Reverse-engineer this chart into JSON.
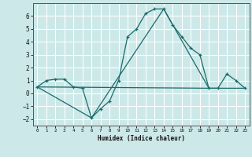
{
  "xlabel": "Humidex (Indice chaleur)",
  "bg_color": "#cce8e8",
  "line_color": "#1a6b6b",
  "grid_color": "#ffffff",
  "xlim": [
    -0.5,
    23.5
  ],
  "ylim": [
    -2.5,
    7.0
  ],
  "yticks": [
    -2,
    -1,
    0,
    1,
    2,
    3,
    4,
    5,
    6
  ],
  "xticks": [
    0,
    1,
    2,
    3,
    4,
    5,
    6,
    7,
    8,
    9,
    10,
    11,
    12,
    13,
    14,
    15,
    16,
    17,
    18,
    19,
    20,
    21,
    22,
    23
  ],
  "line1_x": [
    0,
    1,
    2,
    3,
    4,
    5,
    6,
    7,
    8,
    9,
    10,
    11,
    12,
    13,
    14,
    15,
    16,
    17,
    18,
    19,
    20,
    21,
    22,
    23
  ],
  "line1_y": [
    0.5,
    1.0,
    1.1,
    1.1,
    0.5,
    0.4,
    -1.9,
    -1.2,
    -0.6,
    1.0,
    4.4,
    5.0,
    6.2,
    6.55,
    6.55,
    5.3,
    4.4,
    3.5,
    3.0,
    0.4,
    0.4,
    1.5,
    1.0,
    0.4
  ],
  "line2_x": [
    0,
    6,
    14,
    19,
    23
  ],
  "line2_y": [
    0.5,
    -1.9,
    6.55,
    0.4,
    0.4
  ],
  "line3_x": [
    0,
    19
  ],
  "line3_y": [
    0.5,
    0.4
  ]
}
